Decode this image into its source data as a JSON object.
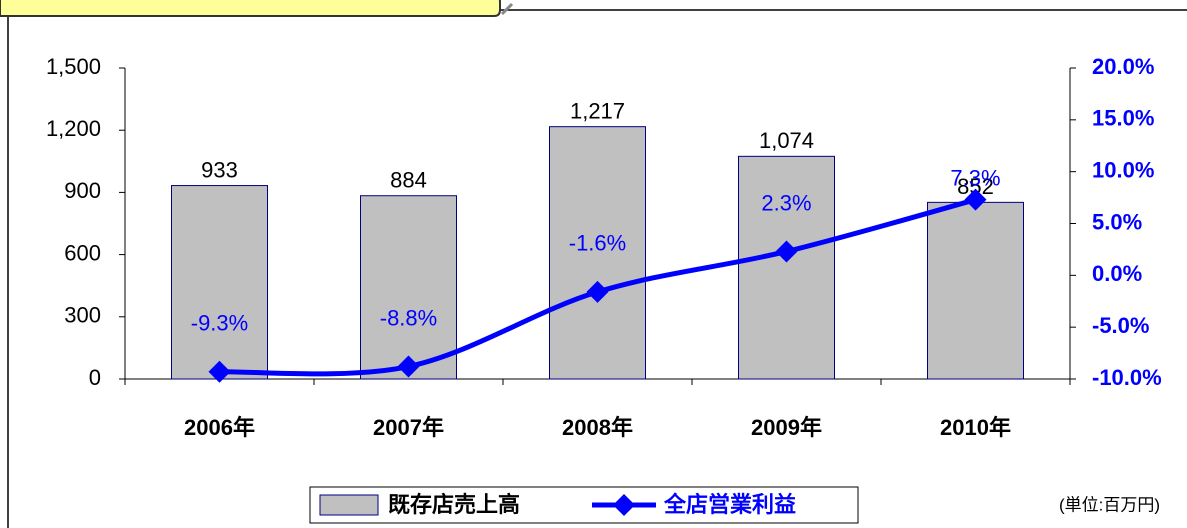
{
  "chart_data": {
    "type": "bar-line",
    "categories": [
      "2006年",
      "2007年",
      "2008年",
      "2009年",
      "2010年"
    ],
    "series": [
      {
        "name": "既存店売上高",
        "color": "#c0c0c0",
        "values": [
          933,
          884,
          1217,
          1074,
          852
        ],
        "value_labels": [
          "933",
          "884",
          "1,217",
          "1,074",
          "852"
        ]
      },
      {
        "name": "全店営業利益",
        "color": "#0000ff",
        "axis": "y2",
        "values": [
          -9.3,
          -8.8,
          -1.6,
          2.3,
          7.3
        ],
        "value_labels": [
          "-9.3%",
          "-8.8%",
          "-1.6%",
          "2.3%",
          "7.3%"
        ]
      }
    ],
    "ylim": [
      0,
      1500
    ],
    "yticks": [
      0,
      300,
      600,
      900,
      {
        "value": 1200,
        "label": "1,200"
      },
      {
        "value": 1500,
        "label": "1,500"
      }
    ],
    "y2lim": [
      -10,
      20
    ],
    "y2ticks": [
      {
        "value": -10,
        "label": "-10.0%"
      },
      {
        "value": -5,
        "label": "-5.0%"
      },
      {
        "value": 0,
        "label": "0.0%"
      },
      {
        "value": 5,
        "label": "5.0%"
      },
      {
        "value": 10,
        "label": "10.0%"
      },
      {
        "value": 15,
        "label": "15.0%"
      },
      {
        "value": 20,
        "label": "20.0%"
      }
    ],
    "unit_note": "(単位:百万円)"
  }
}
